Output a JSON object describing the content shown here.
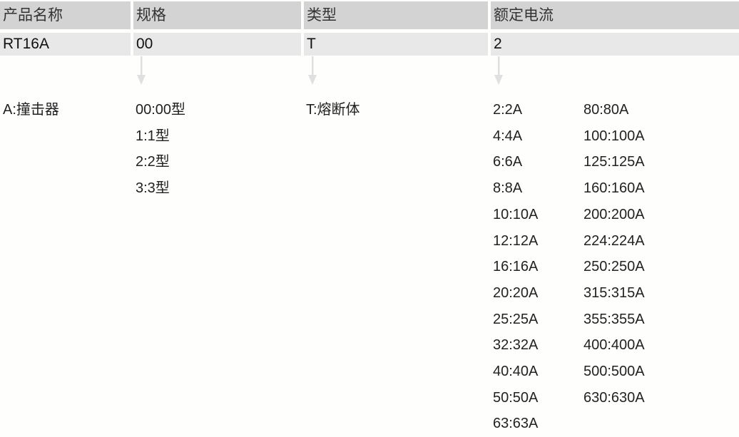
{
  "header": [
    "产品名称",
    "规格",
    "类型",
    "额定电流"
  ],
  "values": [
    "RT16A",
    "00",
    "T",
    "2"
  ],
  "col1": [
    "A:撞击器"
  ],
  "col2": [
    "00:00型",
    "1:1型",
    "2:2型",
    "3:3型"
  ],
  "col3": [
    "T:熔断体"
  ],
  "col4a": [
    "2:2A",
    "4:4A",
    "6:6A",
    "8:8A",
    "10:10A",
    "12:12A",
    "16:16A",
    "20:20A",
    "25:25A",
    "32:32A",
    "40:40A",
    "50:50A",
    "63:63A"
  ],
  "col4b": [
    "80:80A",
    "100:100A",
    "125:125A",
    "160:160A",
    "200:200A",
    "224:224A",
    "250:250A",
    "315:315A",
    "355:355A",
    "400:400A",
    "500:500A",
    "630:630A"
  ],
  "colors": {
    "header_bg": "#d3d3d3",
    "value_bg": "#e8e8e8",
    "arrow": "#e0e0e0"
  }
}
